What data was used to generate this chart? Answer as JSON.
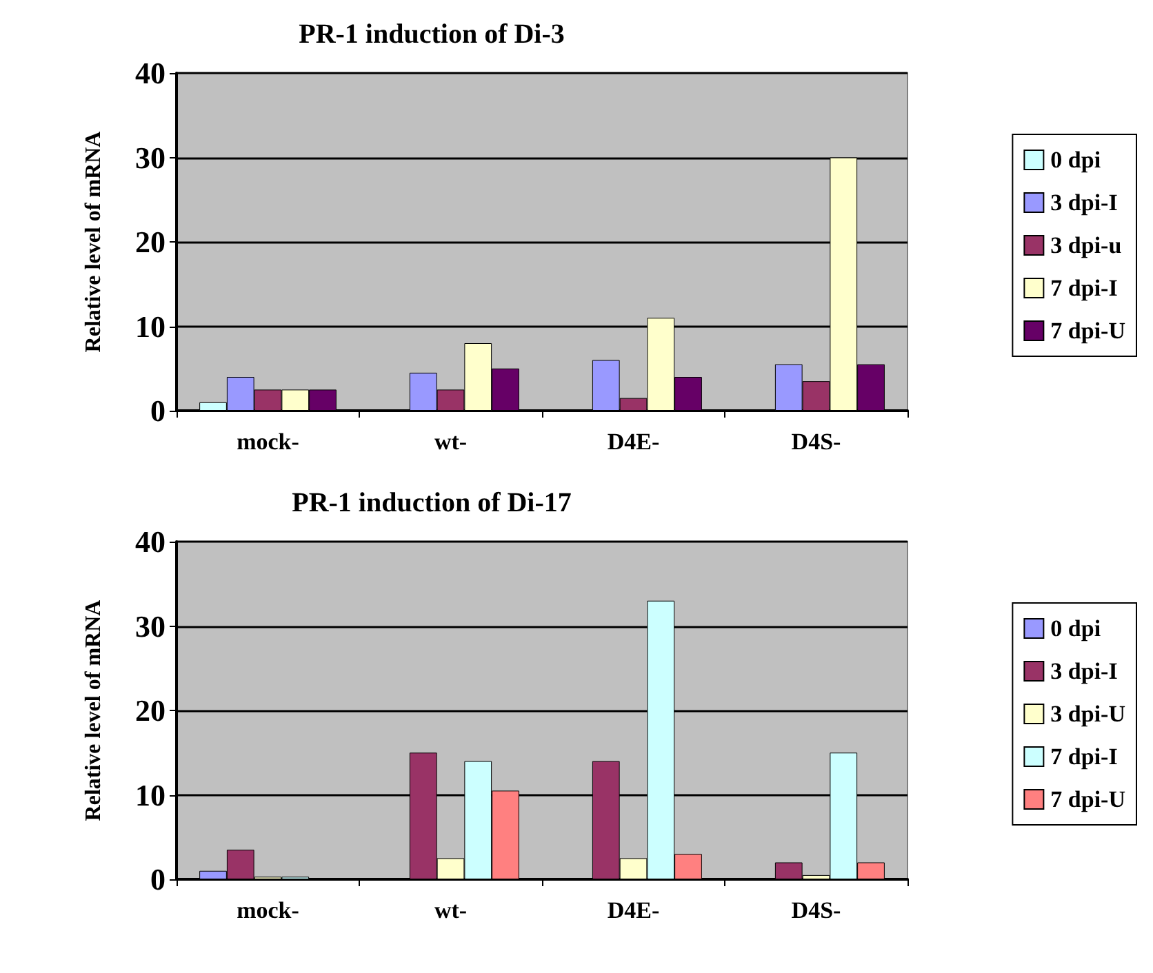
{
  "chart_data": [
    {
      "type": "bar",
      "title": "PR-1 induction of Di-3",
      "ylabel": "Relative level of mRNA",
      "categories": [
        "mock-",
        "wt-",
        "D4E-",
        "D4S-"
      ],
      "series": [
        {
          "name": "0 dpi",
          "color": "#ccffff",
          "values": [
            1,
            null,
            null,
            null
          ]
        },
        {
          "name": "3 dpi-I",
          "color": "#9999ff",
          "values": [
            4,
            4.5,
            6,
            5.5
          ]
        },
        {
          "name": "3 dpi-u",
          "color": "#993366",
          "values": [
            2.5,
            2.5,
            1.5,
            3.5
          ]
        },
        {
          "name": "7 dpi-I",
          "color": "#ffffcc",
          "values": [
            2.5,
            8,
            11,
            30
          ]
        },
        {
          "name": "7 dpi-U",
          "color": "#660066",
          "values": [
            2.5,
            5,
            4,
            5.5
          ]
        }
      ],
      "ylim": [
        0,
        40
      ],
      "yticks": [
        0,
        10,
        20,
        30,
        40
      ],
      "grid": "y",
      "legend": "right"
    },
    {
      "type": "bar",
      "title": "PR-1 induction of Di-17",
      "ylabel": "Relative level of mRNA",
      "categories": [
        "mock-",
        "wt-",
        "D4E-",
        "D4S-"
      ],
      "series": [
        {
          "name": "0 dpi",
          "color": "#9999ff",
          "values": [
            1,
            null,
            null,
            null
          ]
        },
        {
          "name": "3 dpi-I",
          "color": "#993366",
          "values": [
            3.5,
            15,
            14,
            2
          ]
        },
        {
          "name": "3 dpi-U",
          "color": "#ffffcc",
          "values": [
            0.3,
            2.5,
            2.5,
            0.5
          ]
        },
        {
          "name": "7 dpi-I",
          "color": "#ccffff",
          "values": [
            0.3,
            14,
            33,
            15
          ]
        },
        {
          "name": "7 dpi-U",
          "color": "#ff8080",
          "values": [
            null,
            10.5,
            3,
            2
          ]
        }
      ],
      "ylim": [
        0,
        40
      ],
      "yticks": [
        0,
        10,
        20,
        30,
        40
      ],
      "grid": "y",
      "legend": "right"
    }
  ]
}
